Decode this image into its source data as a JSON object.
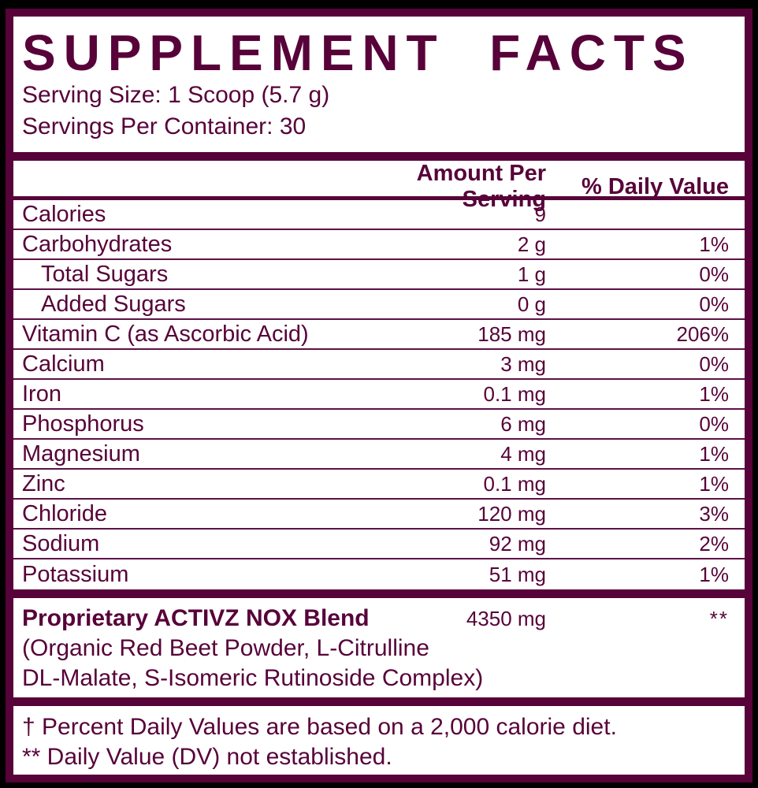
{
  "label": {
    "title": "SUPPLEMENT FACTS",
    "serving_size": "Serving Size: 1 Scoop (5.7 g)",
    "servings_per_container": "Servings Per Container: 30",
    "columns": {
      "amount": "Amount Per Serving",
      "dv": "% Daily Value"
    },
    "rows": [
      {
        "name": "Calories",
        "amount": "9",
        "dv": ""
      },
      {
        "name": "Carbohydrates",
        "amount": "2 g",
        "dv": "1%"
      },
      {
        "name": "Total Sugars",
        "amount": "1 g",
        "dv": "0%",
        "indent": true
      },
      {
        "name": "Added Sugars",
        "amount": "0 g",
        "dv": "0%",
        "indent": true
      },
      {
        "name": "Vitamin C (as Ascorbic Acid)",
        "amount": "185 mg",
        "dv": "206%"
      },
      {
        "name": "Calcium",
        "amount": "3 mg",
        "dv": "0%"
      },
      {
        "name": "Iron",
        "amount": "0.1 mg",
        "dv": "1%"
      },
      {
        "name": "Phosphorus",
        "amount": "6 mg",
        "dv": "0%"
      },
      {
        "name": "Magnesium",
        "amount": "4 mg",
        "dv": "1%"
      },
      {
        "name": "Zinc",
        "amount": "0.1 mg",
        "dv": "1%"
      },
      {
        "name": "Chloride",
        "amount": "120 mg",
        "dv": "3%"
      },
      {
        "name": "Sodium",
        "amount": "92 mg",
        "dv": "2%"
      },
      {
        "name": "Potassium",
        "amount": "51 mg",
        "dv": "1%"
      }
    ],
    "blend": {
      "name": "Proprietary ACTIVZ NOX Blend",
      "amount": "4350 mg",
      "dv": "**",
      "ingredients_line1": "(Organic Red Beet Powder, L-Citrulline",
      "ingredients_line2": "DL-Malate, S-Isomeric Rutinoside Complex)"
    },
    "footnotes": [
      "† Percent Daily Values are based on a 2,000 calorie diet.",
      "** Daily Value (DV) not established."
    ],
    "colors": {
      "accent": "#570239",
      "background": "#ffffff",
      "page_background": "#000000"
    }
  }
}
